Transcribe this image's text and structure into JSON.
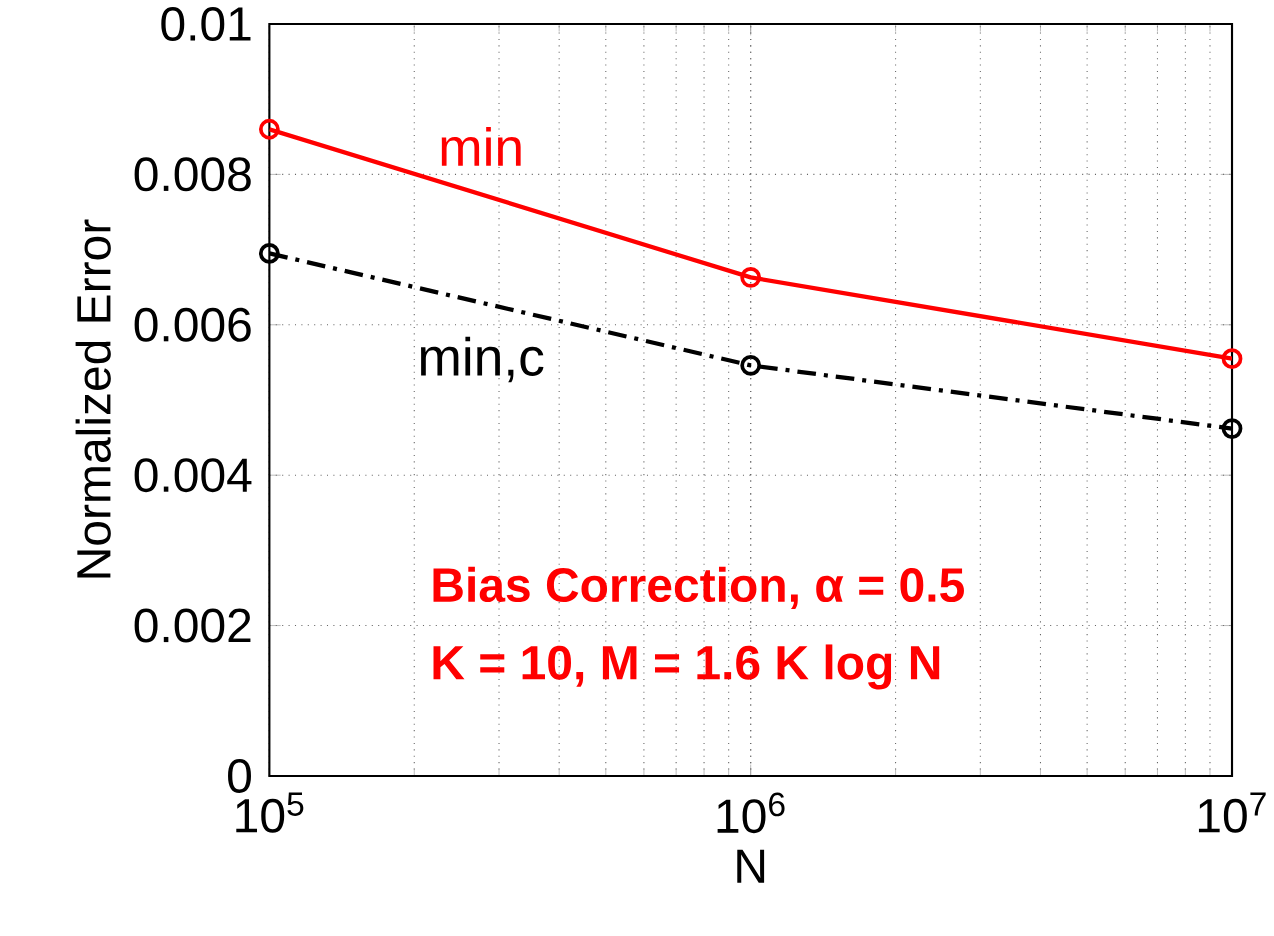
{
  "chart_data": {
    "type": "line",
    "xlabel": "N",
    "ylabel": "Normalized Error",
    "log": "x",
    "grid": true,
    "marker": "circle",
    "x": [
      100000,
      1000000,
      10000000
    ],
    "xlim": [
      100000,
      10000000
    ],
    "xticks": [
      {
        "value": 100000,
        "label": "10$^{5}$"
      },
      {
        "value": 1000000,
        "label": "10$^{6}$"
      },
      {
        "value": 10000000,
        "label": "10$^{7}$"
      }
    ],
    "ylim": [
      0,
      0.01
    ],
    "yticks": [
      0,
      0.002,
      0.004,
      0.006,
      0.008,
      0.01
    ],
    "series": [
      {
        "name": "min",
        "color": "#ff0000",
        "line_style": "solid",
        "values": [
          0.0086,
          0.00663,
          0.00555
        ]
      },
      {
        "name": "min,c",
        "color": "#000000",
        "line_style": "dashdot",
        "values": [
          0.00695,
          0.00546,
          0.00462
        ]
      }
    ],
    "annotations": [
      "Bias Correction, α = 0.5",
      "K = 10, M = 1.6 K log N"
    ]
  }
}
